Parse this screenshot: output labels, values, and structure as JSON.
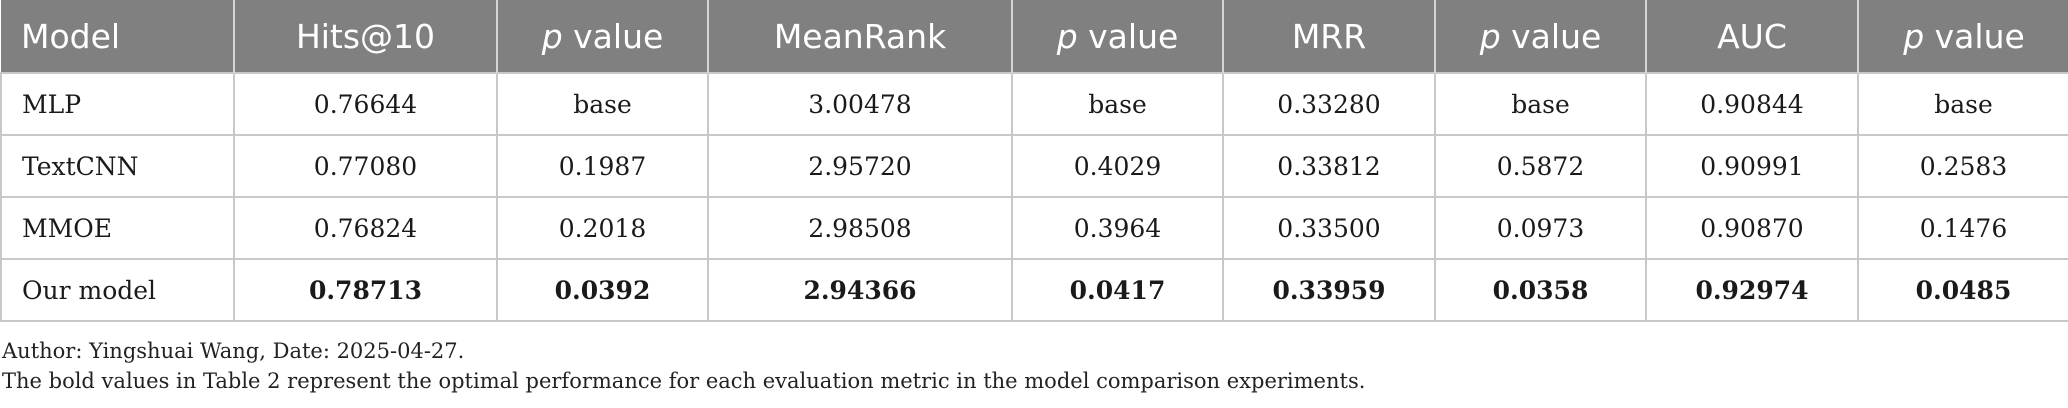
{
  "table": {
    "headers": [
      {
        "italic": "",
        "text": "Model"
      },
      {
        "italic": "",
        "text": "Hits@10"
      },
      {
        "italic": "p",
        "text": " value"
      },
      {
        "italic": "",
        "text": "MeanRank"
      },
      {
        "italic": "p",
        "text": " value"
      },
      {
        "italic": "",
        "text": "MRR"
      },
      {
        "italic": "p",
        "text": " value"
      },
      {
        "italic": "",
        "text": "AUC"
      },
      {
        "italic": "p",
        "text": " value"
      }
    ],
    "rows": [
      [
        "MLP",
        "0.76644",
        "base",
        "3.00478",
        "base",
        "0.33280",
        "base",
        "0.90844",
        "base"
      ],
      [
        "TextCNN",
        "0.77080",
        "0.1987",
        "2.95720",
        "0.4029",
        "0.33812",
        "0.5872",
        "0.90991",
        "0.2583"
      ],
      [
        "MMOE",
        "0.76824",
        "0.2018",
        "2.98508",
        "0.3964",
        "0.33500",
        "0.0973",
        "0.90870",
        "0.1476"
      ],
      [
        "Our model",
        "0.78713",
        "0.0392",
        "2.94366",
        "0.0417",
        "0.33959",
        "0.0358",
        "0.92974",
        "0.0485"
      ]
    ]
  },
  "notes": {
    "author": "Author: Yingshuai Wang, Date: 2025-04-27.",
    "bold_note": "The bold values in Table 2 represent the optimal performance for each evaluation metric in the model comparison experiments."
  }
}
